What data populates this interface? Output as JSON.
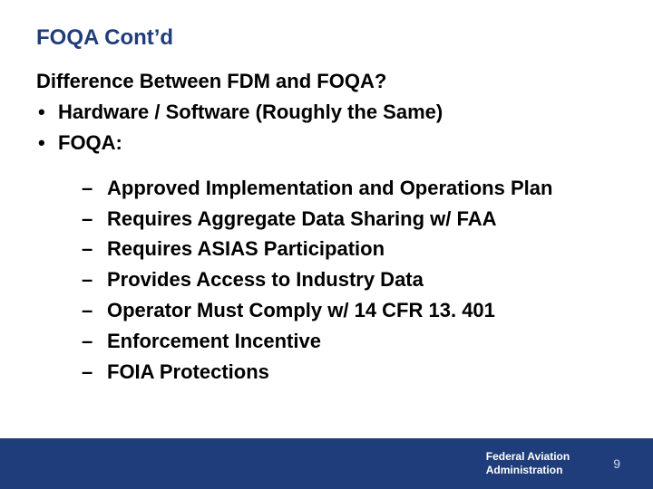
{
  "colors": {
    "title_color": "#1f3d7a",
    "body_text_color": "#000000",
    "footer_bg": "#1f3d7a",
    "footer_text": "#ffffff",
    "page_number_color": "#d0d6e6",
    "background": "#ffffff"
  },
  "typography": {
    "title_fontsize_pt": 18,
    "body_fontsize_pt": 17,
    "footer_fontsize_pt": 9,
    "font_family": "Arial"
  },
  "slide": {
    "title": "FOQA Cont’d",
    "heading": "Difference Between FDM and FOQA?",
    "level1": [
      "Hardware / Software (Roughly the Same)",
      "FOQA:"
    ],
    "level2": [
      "Approved Implementation and Operations Plan",
      "Requires Aggregate Data Sharing w/ FAA",
      "Requires ASIAS Participation",
      "Provides Access to Industry Data",
      "Operator Must Comply w/ 14 CFR 13. 401",
      "Enforcement Incentive",
      "FOIA Protections"
    ]
  },
  "footer": {
    "org_line1": "Federal Aviation",
    "org_line2": "Administration",
    "page_number": "9"
  }
}
